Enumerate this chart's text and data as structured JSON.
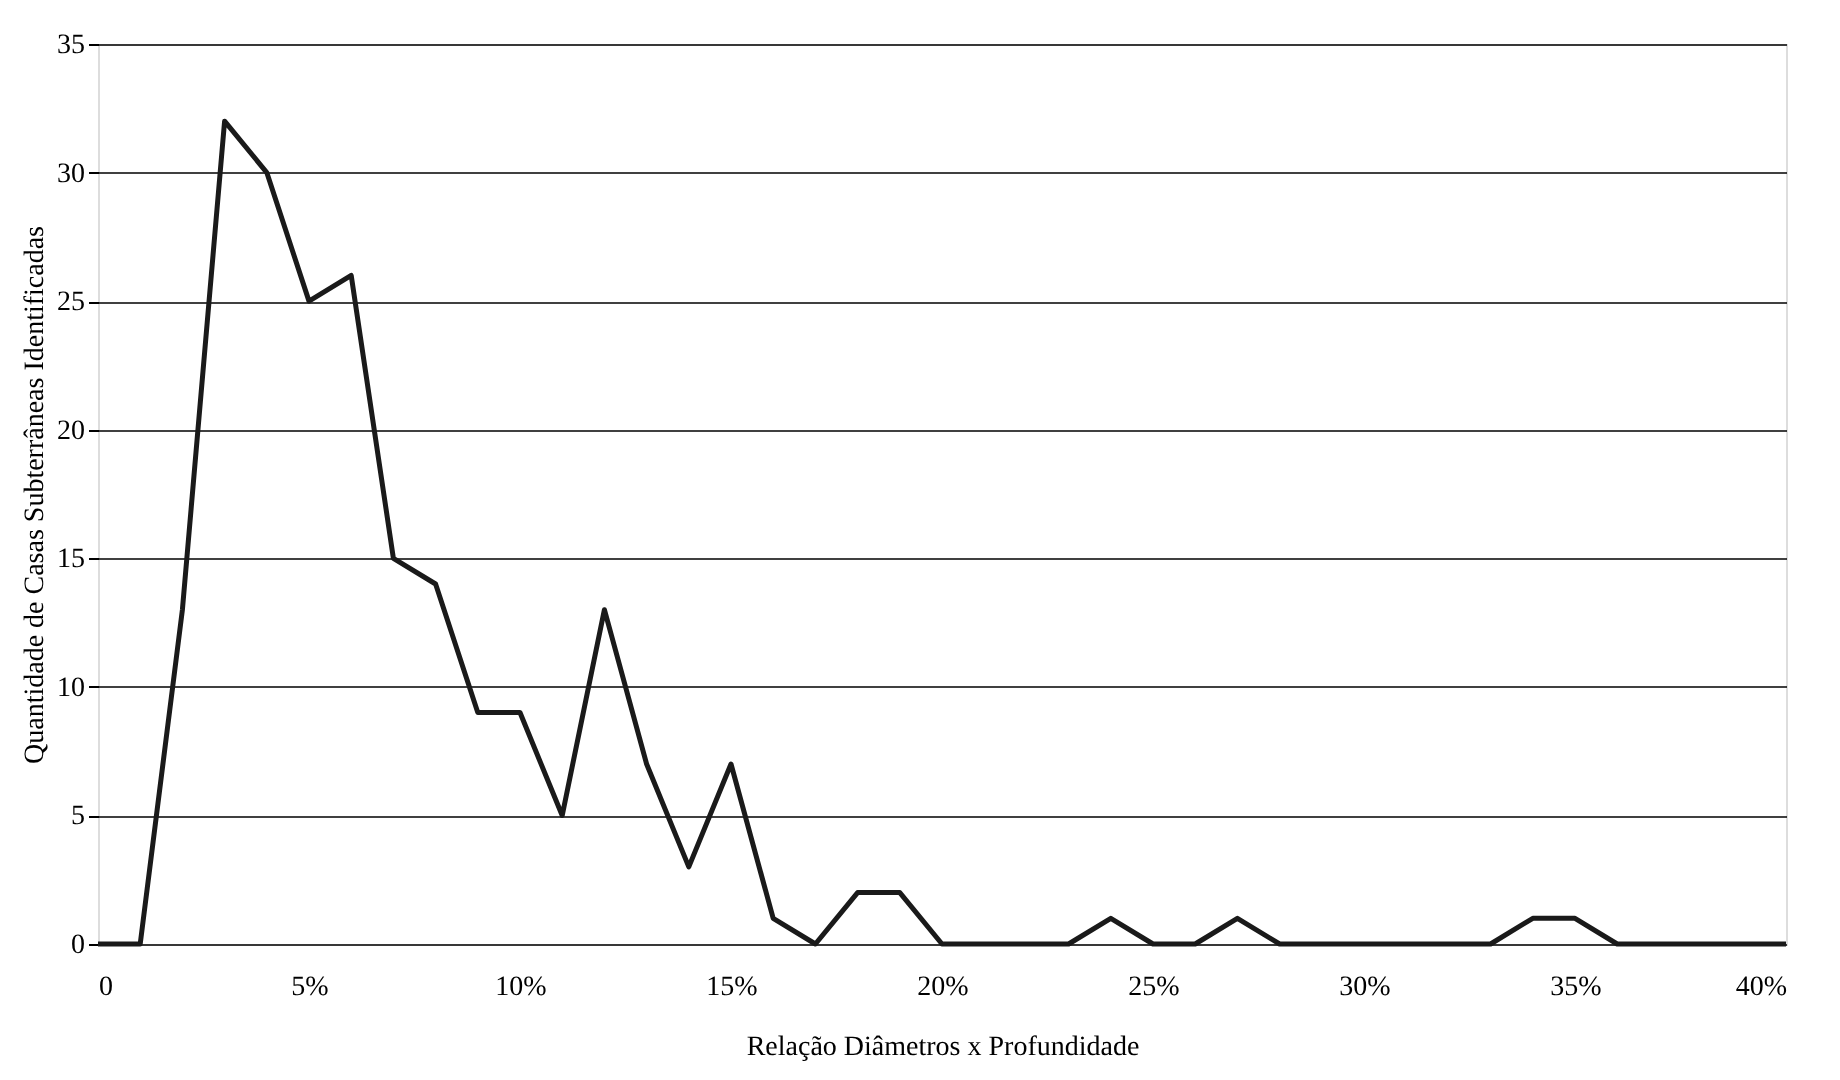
{
  "chart_data": {
    "type": "line",
    "xlabel": "Relação Diâmetros x Profundidade",
    "ylabel": "Quantidade de Casas Subterrâneas Identificadas",
    "x": [
      0,
      1,
      2,
      3,
      4,
      5,
      6,
      7,
      8,
      9,
      10,
      11,
      12,
      13,
      14,
      15,
      16,
      17,
      18,
      19,
      20,
      21,
      22,
      23,
      24,
      25,
      26,
      27,
      28,
      29,
      30,
      31,
      32,
      33,
      34,
      35,
      36,
      37,
      38,
      39,
      40
    ],
    "series": [
      {
        "color": "#1a1a1a",
        "values": [
          0,
          0,
          13,
          32,
          30,
          25,
          26,
          15,
          14,
          9,
          9,
          5,
          13,
          7,
          3,
          7,
          1,
          0,
          2,
          2,
          0,
          0,
          0,
          0,
          1,
          0,
          0,
          1,
          0,
          0,
          0,
          0,
          0,
          0,
          1,
          1,
          0,
          0,
          0,
          0,
          0
        ]
      }
    ],
    "xlim": [
      0,
      40
    ],
    "xticks": [
      0,
      {
        "value": 5,
        "label": "5%"
      },
      {
        "value": 10,
        "label": "10%"
      },
      {
        "value": 15,
        "label": "15%"
      },
      {
        "value": 20,
        "label": "20%"
      },
      {
        "value": 25,
        "label": "25%"
      },
      {
        "value": 30,
        "label": "30%"
      },
      {
        "value": 35,
        "label": "35%"
      },
      {
        "value": 40,
        "label": "40%"
      }
    ],
    "ylim": [
      0,
      35
    ],
    "yticks": [
      0,
      5,
      10,
      15,
      20,
      25,
      30,
      35
    ],
    "grid": "y",
    "marker": "none",
    "line_style": "solid"
  }
}
